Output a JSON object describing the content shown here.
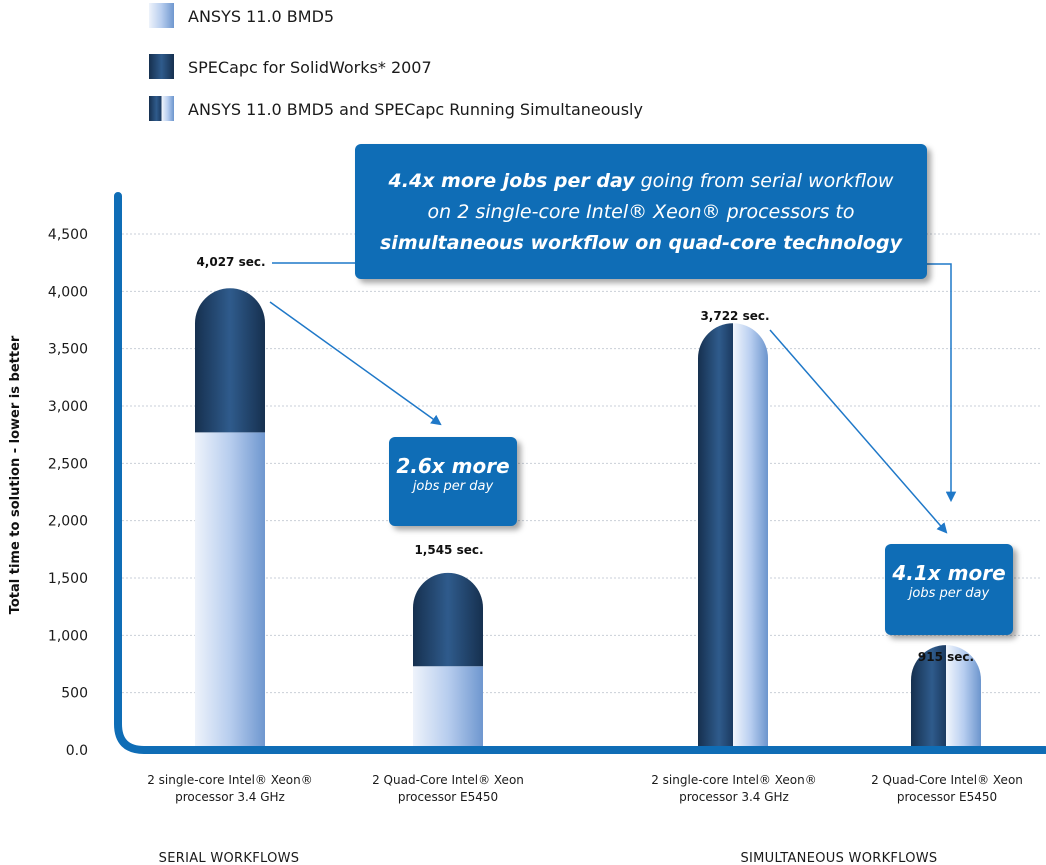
{
  "legend": [
    {
      "label": "ANSYS 11.0 BMD5",
      "swatch": "light"
    },
    {
      "label": "SPECapc for SolidWorks* 2007",
      "swatch": "dark"
    },
    {
      "label": "ANSYS 11.0 BMD5 and SPECapc Running Simultaneously",
      "swatch": "split"
    }
  ],
  "callouts": {
    "main": {
      "part1_bold": "4.4x more jobs per day",
      "part1_rest": " going from serial workflow",
      "line2": "on 2 single-core Intel® Xeon® processors to",
      "line3_bold": "simultaneous workflow on quad-core technology"
    },
    "serial": {
      "big": "2.6x more",
      "small": "jobs per day"
    },
    "simultaneous": {
      "big": "4.1x more",
      "small": "jobs per day"
    }
  },
  "colors": {
    "axis": "#0f6db6",
    "dark_series": "#1d3f66",
    "light_series": "#8fb2e0",
    "callout_bg": "#0f6db6",
    "arrow": "#1f78c8"
  },
  "chart_data": {
    "type": "bar",
    "ylabel": "Total time to solution - lower is better",
    "ylim": [
      0,
      4500
    ],
    "yticks": [
      0,
      500,
      1000,
      1500,
      2000,
      2500,
      3000,
      3500,
      4000,
      4500
    ],
    "ytick_labels": [
      "0.0",
      "500",
      "1,000",
      "1,500",
      "2,000",
      "2,500",
      "3,000",
      "3,500",
      "4,000",
      "4,500"
    ],
    "grid": true,
    "groups": [
      "SERIAL WORKFLOWS",
      "SIMULTANEOUS WORKFLOWS"
    ],
    "categories": [
      [
        "2 single-core Intel® Xeon®",
        "processor 3.4 GHz"
      ],
      [
        "2 Quad-Core Intel® Xeon",
        "processor E5450"
      ],
      [
        "2 single-core Intel® Xeon®",
        "processor 3.4 GHz"
      ],
      [
        "2 Quad-Core Intel® Xeon",
        "processor E5450"
      ]
    ],
    "bars": [
      {
        "group": "SERIAL WORKFLOWS",
        "total": 4027,
        "total_label": "4,027 sec.",
        "mode": "stacked",
        "ansys": 2770,
        "specapc": 1257
      },
      {
        "group": "SERIAL WORKFLOWS",
        "total": 1545,
        "total_label": "1,545 sec.",
        "mode": "stacked",
        "ansys": 730,
        "specapc": 815
      },
      {
        "group": "SIMULTANEOUS WORKFLOWS",
        "total": 3722,
        "total_label": "3,722 sec.",
        "mode": "simultaneous"
      },
      {
        "group": "SIMULTANEOUS WORKFLOWS",
        "total": 915,
        "total_label": "915 sec.",
        "mode": "simultaneous"
      }
    ],
    "series": [
      {
        "name": "ANSYS 11.0 BMD5"
      },
      {
        "name": "SPECapc for SolidWorks* 2007"
      },
      {
        "name": "ANSYS 11.0 BMD5 and SPECapc Running Simultaneously"
      }
    ],
    "legend_position": "top-left"
  }
}
